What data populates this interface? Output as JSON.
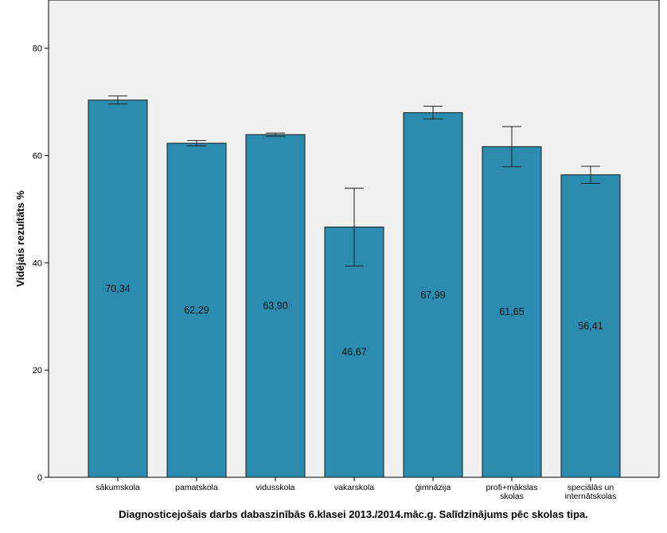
{
  "chart_data": {
    "type": "bar",
    "title": "",
    "xlabel": "Diagnosticejošais darbs dabaszinībās 6.klasei 2013./2014.māc.g. Salīdzinājums pēc skolas tipa.",
    "ylabel": "Vidējais rezultāts %",
    "ylim": [
      0,
      89
    ],
    "yticks": [
      0,
      20,
      40,
      60,
      80
    ],
    "grid": false,
    "categories": [
      [
        "sākumskola"
      ],
      [
        "pamatskola"
      ],
      [
        "vidusskola"
      ],
      [
        "vakarskola"
      ],
      [
        "ģimnāzija"
      ],
      [
        "profi+mākslas",
        "skolas"
      ],
      [
        "speciālās un",
        "internātskolas"
      ]
    ],
    "values": [
      70.34,
      62.29,
      63.9,
      46.67,
      67.99,
      61.65,
      56.41
    ],
    "value_labels": [
      "70,34",
      "62,29",
      "63,90",
      "46,67",
      "67,99",
      "61,65",
      "56,41"
    ],
    "error_bars": [
      [
        69.6,
        71.1
      ],
      [
        61.8,
        62.8
      ],
      [
        63.6,
        64.2
      ],
      [
        39.4,
        53.9
      ],
      [
        66.8,
        69.2
      ],
      [
        57.9,
        65.4
      ],
      [
        54.8,
        58.0
      ]
    ],
    "colors": {
      "bar_fill": "#2b8cb0",
      "bar_stroke": "#1a1a1a",
      "plot_background": "#f0f0f0",
      "axis": "#000000"
    }
  }
}
